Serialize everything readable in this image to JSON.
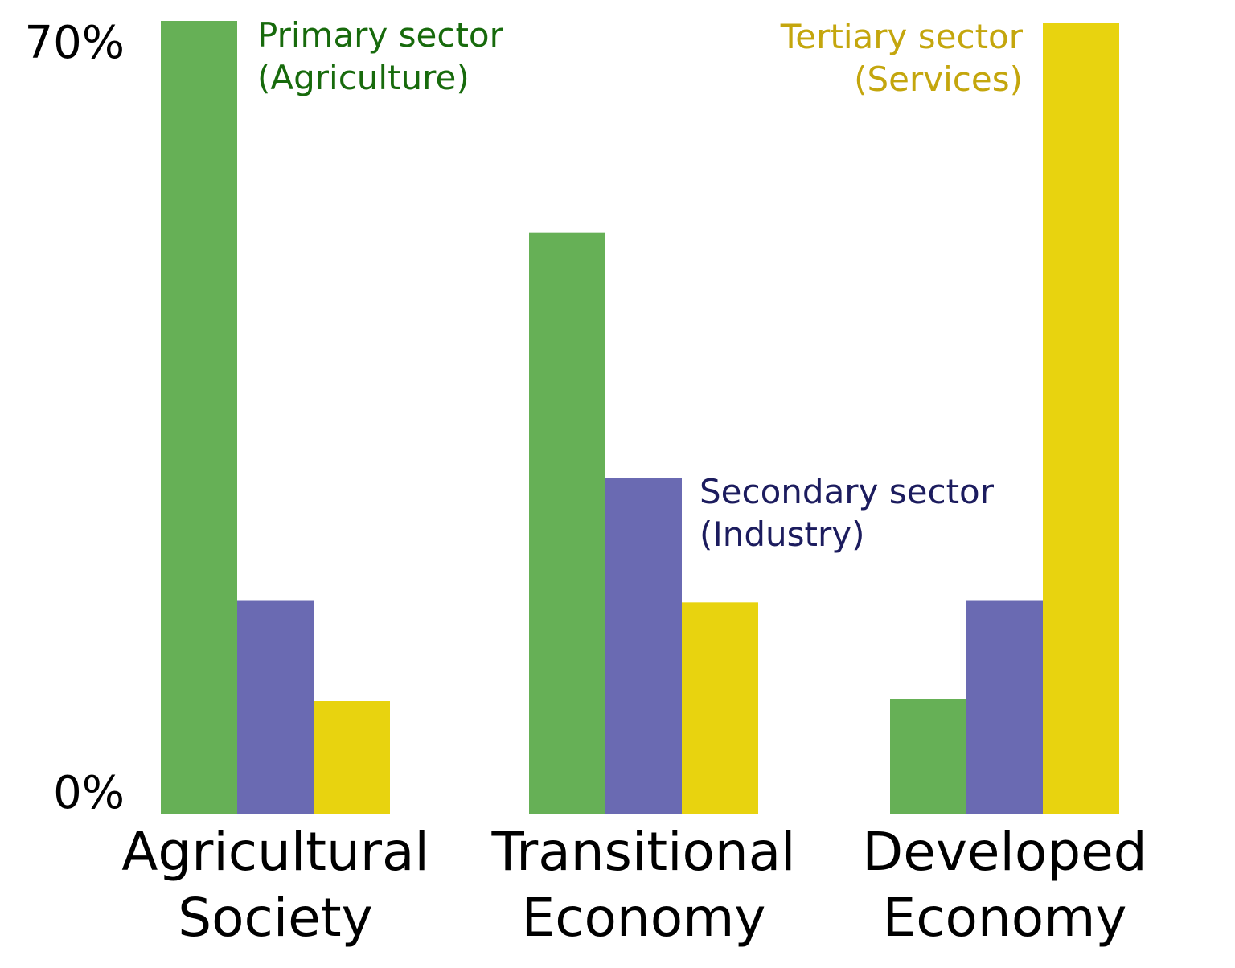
{
  "chart_data": {
    "type": "bar",
    "categories": [
      [
        "Agricultural",
        "Society"
      ],
      [
        "Transitional",
        "Economy"
      ],
      [
        "Developed",
        "Economy"
      ]
    ],
    "series": [
      {
        "name": "Primary sector (Agriculture)",
        "label_lines": [
          "Primary sector",
          "(Agriculture)"
        ],
        "color": "#66b056",
        "label_color": "#176a0c",
        "values": [
          70,
          51.3,
          10.2
        ]
      },
      {
        "name": "Secondary sector (Industry)",
        "label_lines": [
          "Secondary sector",
          "(Industry)"
        ],
        "color": "#6a6ab2",
        "label_color": "#1c1c5e",
        "values": [
          18.9,
          29.7,
          18.9
        ]
      },
      {
        "name": "Tertiary sector (Services)",
        "label_lines": [
          "Tertiary sector",
          "(Services)"
        ],
        "color": "#e8d30f",
        "label_color": "#c4a60d",
        "values": [
          10,
          18.7,
          69.8
        ]
      }
    ],
    "y_ticks": [
      {
        "value": 0,
        "label": "0%"
      },
      {
        "value": 70,
        "label": "70%"
      }
    ],
    "ylim": [
      0,
      70
    ],
    "grid": false,
    "title": "",
    "xlabel": "",
    "ylabel": ""
  }
}
